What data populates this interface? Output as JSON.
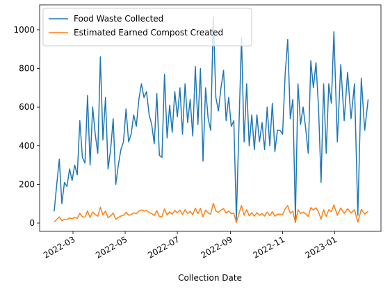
{
  "chart_data": {
    "type": "line",
    "xlabel": "Collection Date",
    "x": [
      "2022-02-07",
      "2022-02-10",
      "2022-02-13",
      "2022-02-16",
      "2022-02-19",
      "2022-02-22",
      "2022-02-25",
      "2022-02-28",
      "2022-03-03",
      "2022-03-06",
      "2022-03-09",
      "2022-03-12",
      "2022-03-15",
      "2022-03-18",
      "2022-03-21",
      "2022-03-24",
      "2022-03-27",
      "2022-03-30",
      "2022-04-02",
      "2022-04-05",
      "2022-04-08",
      "2022-04-11",
      "2022-04-14",
      "2022-04-17",
      "2022-04-20",
      "2022-04-23",
      "2022-04-26",
      "2022-04-29",
      "2022-05-02",
      "2022-05-05",
      "2022-05-08",
      "2022-05-11",
      "2022-05-14",
      "2022-05-17",
      "2022-05-20",
      "2022-05-23",
      "2022-05-26",
      "2022-05-29",
      "2022-06-01",
      "2022-06-04",
      "2022-06-07",
      "2022-06-10",
      "2022-06-13",
      "2022-06-16",
      "2022-06-19",
      "2022-06-22",
      "2022-06-25",
      "2022-06-28",
      "2022-07-01",
      "2022-07-04",
      "2022-07-07",
      "2022-07-10",
      "2022-07-13",
      "2022-07-16",
      "2022-07-19",
      "2022-07-22",
      "2022-07-25",
      "2022-07-28",
      "2022-07-31",
      "2022-08-03",
      "2022-08-06",
      "2022-08-09",
      "2022-08-12",
      "2022-08-15",
      "2022-08-18",
      "2022-08-21",
      "2022-08-24",
      "2022-08-27",
      "2022-08-30",
      "2022-09-02",
      "2022-09-05",
      "2022-09-08",
      "2022-09-11",
      "2022-09-14",
      "2022-09-17",
      "2022-09-20",
      "2022-09-23",
      "2022-09-26",
      "2022-09-29",
      "2022-10-02",
      "2022-10-05",
      "2022-10-08",
      "2022-10-11",
      "2022-10-14",
      "2022-10-17",
      "2022-10-20",
      "2022-10-23",
      "2022-10-26",
      "2022-10-29",
      "2022-11-01",
      "2022-11-04",
      "2022-11-07",
      "2022-11-10",
      "2022-11-13",
      "2022-11-16",
      "2022-11-19",
      "2022-11-22",
      "2022-11-25",
      "2022-11-28",
      "2022-12-01",
      "2022-12-04",
      "2022-12-07",
      "2022-12-10",
      "2022-12-13",
      "2022-12-16",
      "2022-12-19",
      "2022-12-22",
      "2022-12-25",
      "2022-12-28",
      "2022-12-31",
      "2023-01-04",
      "2023-01-08",
      "2023-01-12",
      "2023-01-16",
      "2023-01-20",
      "2023-01-24",
      "2023-01-28",
      "2023-02-01",
      "2023-02-05",
      "2023-02-09"
    ],
    "series": [
      {
        "name": "Food Waste Collected",
        "color": "#1f77b4",
        "values": [
          60,
          200,
          330,
          100,
          210,
          190,
          280,
          220,
          300,
          250,
          530,
          340,
          310,
          660,
          300,
          600,
          460,
          360,
          860,
          430,
          650,
          280,
          380,
          540,
          200,
          300,
          380,
          420,
          590,
          420,
          460,
          560,
          500,
          640,
          720,
          650,
          680,
          560,
          510,
          410,
          670,
          350,
          340,
          770,
          440,
          610,
          470,
          680,
          550,
          700,
          460,
          720,
          520,
          640,
          450,
          810,
          510,
          800,
          320,
          700,
          540,
          480,
          1070,
          650,
          580,
          700,
          790,
          530,
          650,
          500,
          530,
          20,
          500,
          960,
          420,
          720,
          400,
          560,
          380,
          560,
          420,
          520,
          380,
          600,
          400,
          620,
          370,
          480,
          480,
          460,
          770,
          950,
          540,
          640,
          20,
          720,
          510,
          600,
          490,
          360,
          840,
          700,
          830,
          600,
          210,
          720,
          360,
          720,
          620,
          990,
          420,
          820,
          530,
          780,
          540,
          720,
          40,
          750,
          480,
          640
        ]
      },
      {
        "name": "Estimated Earned Compost Created",
        "color": "#ff7f0e",
        "values": [
          6,
          18,
          32,
          12,
          20,
          18,
          27,
          22,
          29,
          24,
          50,
          33,
          30,
          62,
          29,
          57,
          44,
          35,
          82,
          42,
          62,
          28,
          37,
          52,
          20,
          29,
          36,
          40,
          56,
          40,
          44,
          53,
          48,
          61,
          68,
          62,
          65,
          54,
          49,
          39,
          64,
          34,
          33,
          73,
          42,
          58,
          45,
          65,
          53,
          67,
          44,
          69,
          50,
          61,
          43,
          77,
          49,
          76,
          31,
          67,
          52,
          46,
          102,
          62,
          55,
          67,
          75,
          51,
          62,
          48,
          51,
          2,
          48,
          91,
          40,
          69,
          38,
          53,
          36,
          53,
          40,
          50,
          36,
          57,
          38,
          59,
          35,
          46,
          46,
          44,
          73,
          90,
          51,
          61,
          2,
          69,
          49,
          57,
          47,
          34,
          80,
          67,
          79,
          57,
          20,
          69,
          34,
          69,
          59,
          94,
          40,
          78,
          50,
          74,
          52,
          69,
          4,
          71,
          46,
          61
        ]
      }
    ],
    "xlim": [
      "2022-01-21",
      "2023-02-24"
    ],
    "xticks": [
      "2022-03",
      "2022-05",
      "2022-07",
      "2022-09",
      "2022-11",
      "2023-01"
    ],
    "ylim": [
      -43,
      1129
    ],
    "yticks": [
      0,
      200,
      400,
      600,
      800,
      1000
    ],
    "legend": "upper left",
    "grid": false
  }
}
